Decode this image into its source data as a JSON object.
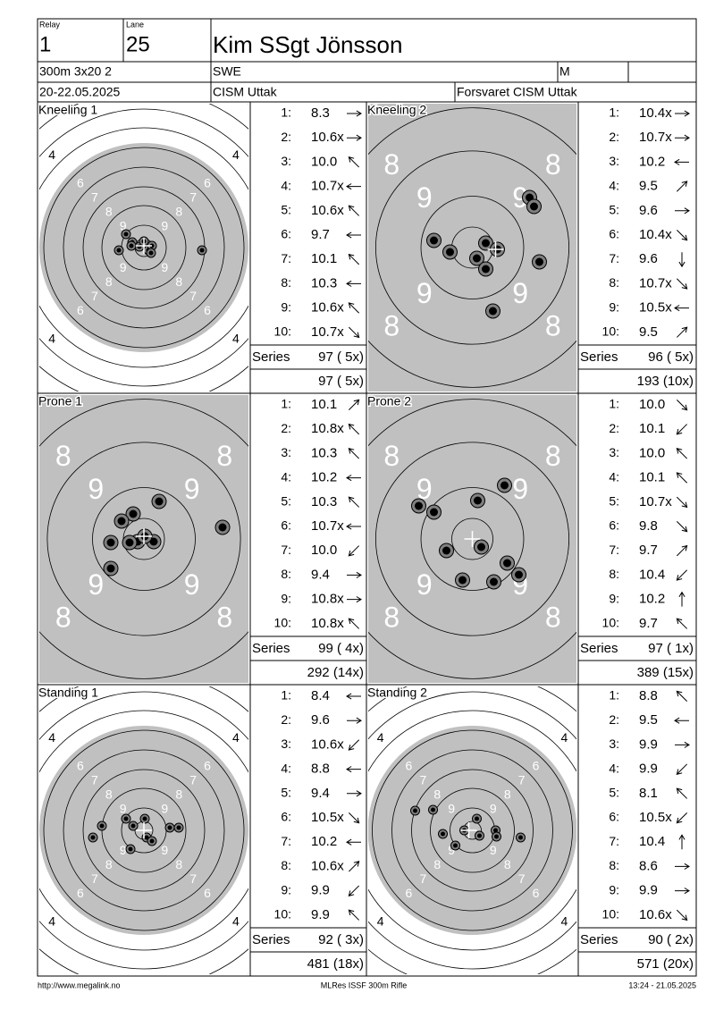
{
  "header": {
    "relay_label": "Relay",
    "relay": "1",
    "lane_label": "Lane",
    "lane": "25",
    "name": "Kim SSgt Jönsson",
    "event": "300m 3x20 2",
    "nation": "SWE",
    "gender": "M",
    "date": "20-22.05.2025",
    "competition": "CISM Uttak",
    "club": "Forsvaret CISM Uttak"
  },
  "shot_numbers": [
    "1:",
    "2:",
    "3:",
    "4:",
    "5:",
    "6:",
    "7:",
    "8:",
    "9:",
    "10:"
  ],
  "blocks": [
    {
      "title": "Kneeling 1",
      "view": "full",
      "ring_labels": [
        "4",
        "5",
        "6",
        "7",
        "8",
        "9"
      ],
      "shots": [
        "8.3",
        "10.6x",
        "10.0",
        "10.7x",
        "10.6x",
        "9.7",
        "10.1",
        "10.3",
        "10.6x",
        "10.7x"
      ],
      "series_label": "Series",
      "series_total": "97 ( 5x)",
      "running_total": "97 ( 5x)"
    },
    {
      "title": "Kneeling 2",
      "view": "zoom",
      "ring_labels": [
        "8",
        "9"
      ],
      "shots": [
        "10.4x",
        "10.7x",
        "10.2",
        "9.5",
        "9.6",
        "10.4x",
        "9.6",
        "10.7x",
        "10.5x",
        "9.5"
      ],
      "series_label": "Series",
      "series_total": "96 ( 5x)",
      "running_total": "193 (10x)"
    },
    {
      "title": "Prone 1",
      "view": "zoom",
      "ring_labels": [
        "8",
        "9"
      ],
      "shots": [
        "10.1",
        "10.8x",
        "10.3",
        "10.2",
        "10.3",
        "10.7x",
        "10.0",
        "9.4",
        "10.8x",
        "10.8x"
      ],
      "series_label": "Series",
      "series_total": "99 ( 4x)",
      "running_total": "292 (14x)"
    },
    {
      "title": "Prone 2",
      "view": "zoom",
      "ring_labels": [
        "8",
        "9"
      ],
      "shots": [
        "10.0",
        "10.1",
        "10.0",
        "10.1",
        "10.7x",
        "9.8",
        "9.7",
        "10.4",
        "10.2",
        "9.7"
      ],
      "series_label": "Series",
      "series_total": "97 ( 1x)",
      "running_total": "389 (15x)"
    },
    {
      "title": "Standing 1",
      "view": "full",
      "ring_labels": [
        "4",
        "5",
        "6",
        "7",
        "8",
        "9"
      ],
      "shots": [
        "8.4",
        "9.6",
        "10.6x",
        "8.8",
        "9.4",
        "10.5x",
        "10.2",
        "10.6x",
        "9.9",
        "9.9"
      ],
      "series_label": "Series",
      "series_total": "92 ( 3x)",
      "running_total": "481 (18x)"
    },
    {
      "title": "Standing 2",
      "view": "full",
      "ring_labels": [
        "4",
        "5",
        "6",
        "7",
        "8",
        "9"
      ],
      "shots": [
        "8.8",
        "9.5",
        "9.9",
        "9.9",
        "8.1",
        "10.5x",
        "10.4",
        "8.6",
        "9.9",
        "10.6x"
      ],
      "series_label": "Series",
      "series_total": "90 ( 2x)",
      "running_total": "571 (20x)"
    }
  ],
  "footer": {
    "url": "http://www.megalink.no",
    "software": "MLRes ISSF 300m Rifle",
    "timestamp": "13:24 - 21.05.2025"
  }
}
